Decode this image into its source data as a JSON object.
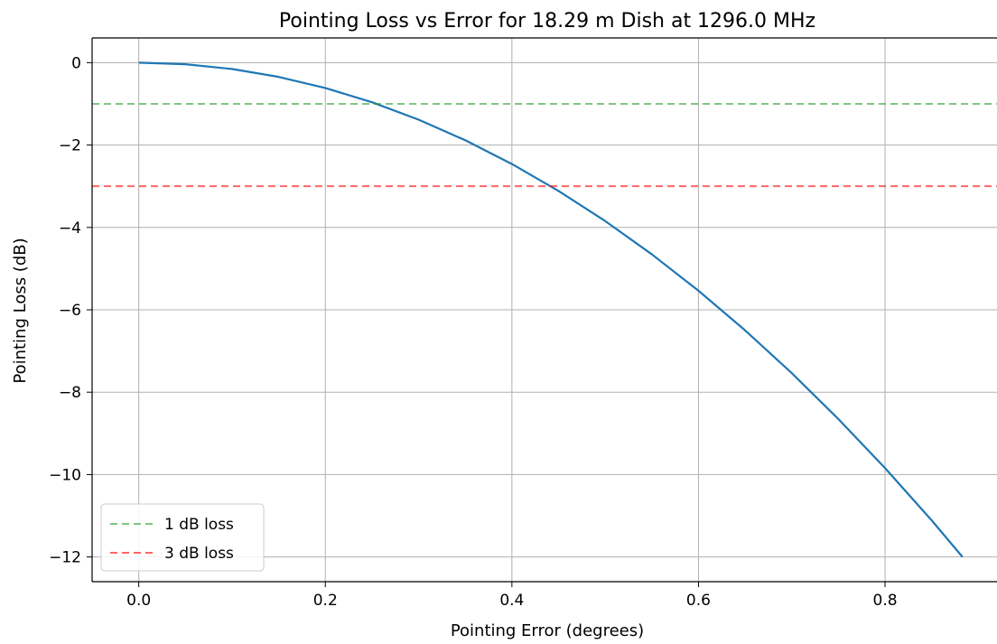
{
  "chart_data": {
    "type": "line",
    "title": "Pointing Loss vs Error for 18.29 m Dish at 1296.0 MHz",
    "xlabel": "Pointing Error (degrees)",
    "ylabel": "Pointing Loss (dB)",
    "xlim": [
      -0.05,
      0.92
    ],
    "ylim": [
      -12.6,
      0.6
    ],
    "xticks": [
      0.0,
      0.2,
      0.4,
      0.6,
      0.8
    ],
    "xtick_labels": [
      "0.0",
      "0.2",
      "0.4",
      "0.6",
      "0.8"
    ],
    "yticks": [
      0,
      -2,
      -4,
      -6,
      -8,
      -10,
      -12
    ],
    "ytick_labels": [
      "0",
      "−2",
      "−4",
      "−6",
      "−8",
      "−10",
      "−12"
    ],
    "grid": true,
    "legend_position": "lower-left",
    "series": [
      {
        "kind": "curve",
        "color": "#1f77b4",
        "x": [
          0.0,
          0.05,
          0.1,
          0.15,
          0.2,
          0.25,
          0.3,
          0.35,
          0.4,
          0.45,
          0.5,
          0.55,
          0.6,
          0.65,
          0.7,
          0.75,
          0.8,
          0.85,
          0.883
        ],
        "y": [
          0.0,
          -0.038,
          -0.154,
          -0.346,
          -0.615,
          -0.961,
          -1.384,
          -1.884,
          -2.461,
          -3.115,
          -3.845,
          -4.653,
          -5.537,
          -6.499,
          -7.537,
          -8.652,
          -9.843,
          -11.112,
          -12.0
        ]
      },
      {
        "kind": "hline",
        "name": "1 dB loss",
        "y": -1,
        "color": "#2ca02c",
        "dashed": true
      },
      {
        "kind": "hline",
        "name": "3 dB loss",
        "y": -3,
        "color": "#ff0000",
        "dashed": true
      }
    ]
  }
}
